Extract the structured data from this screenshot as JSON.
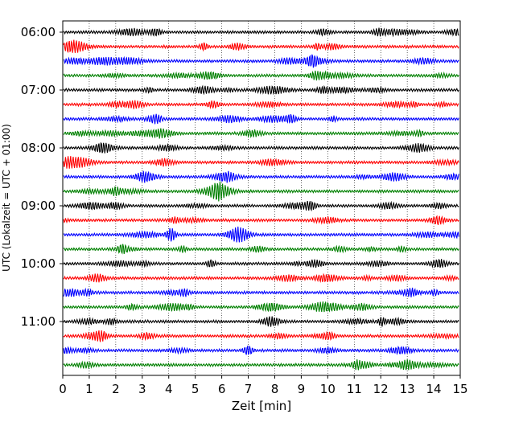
{
  "chart_data": {
    "type": "line",
    "title": "",
    "xlabel": "Zeit  [min]",
    "ylabel": "UTC (Lokalzeit = UTC + 01:00)",
    "xlim": [
      0,
      15
    ],
    "x_ticks": [
      0,
      1,
      2,
      3,
      4,
      5,
      6,
      7,
      8,
      9,
      10,
      11,
      12,
      13,
      14,
      15
    ],
    "y_ticks": [
      "06:00",
      "07:00",
      "08:00",
      "09:00",
      "10:00",
      "11:00"
    ],
    "grid": "vertical dotted",
    "trace_interval_min": 15,
    "series": [
      {
        "start": "06:00",
        "color": "#000000"
      },
      {
        "start": "06:15",
        "color": "#ff0000"
      },
      {
        "start": "06:30",
        "color": "#0000ff"
      },
      {
        "start": "06:45",
        "color": "#008000"
      },
      {
        "start": "07:00",
        "color": "#000000"
      },
      {
        "start": "07:15",
        "color": "#ff0000"
      },
      {
        "start": "07:30",
        "color": "#0000ff"
      },
      {
        "start": "07:45",
        "color": "#008000"
      },
      {
        "start": "08:00",
        "color": "#000000"
      },
      {
        "start": "08:15",
        "color": "#ff0000"
      },
      {
        "start": "08:30",
        "color": "#0000ff"
      },
      {
        "start": "08:45",
        "color": "#008000"
      },
      {
        "start": "09:00",
        "color": "#000000"
      },
      {
        "start": "09:15",
        "color": "#ff0000"
      },
      {
        "start": "09:30",
        "color": "#0000ff"
      },
      {
        "start": "09:45",
        "color": "#008000"
      },
      {
        "start": "10:00",
        "color": "#000000"
      },
      {
        "start": "10:15",
        "color": "#ff0000"
      },
      {
        "start": "10:30",
        "color": "#0000ff"
      },
      {
        "start": "10:45",
        "color": "#008000"
      },
      {
        "start": "11:00",
        "color": "#000000"
      },
      {
        "start": "11:15",
        "color": "#ff0000"
      },
      {
        "start": "11:30",
        "color": "#0000ff"
      },
      {
        "start": "11:45",
        "color": "#008000"
      }
    ]
  }
}
